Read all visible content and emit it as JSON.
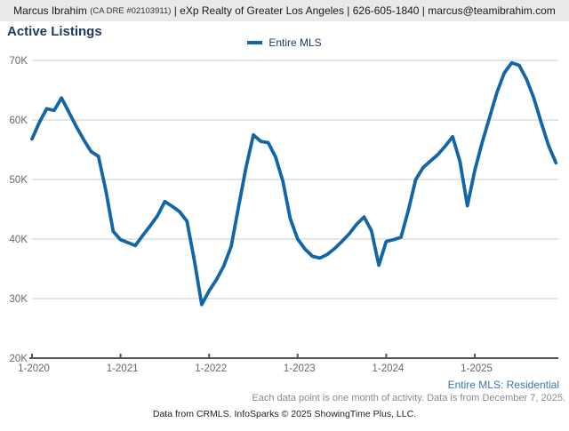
{
  "header": {
    "name": "Marcus Ibrahim ",
    "license": "(CA DRE #02103911)",
    "rest": " | eXp Realty of Greater Los Angeles | 626-605-1840 | marcus@teamibrahim.com"
  },
  "title": "Active Listings",
  "legend": {
    "label": "Entire MLS"
  },
  "footer": {
    "series_link": "Entire MLS: Residential",
    "note": "Each data point is one month of activity. Data is from December 7, 2025.",
    "attribution": "Data from CRMLS. InfoSparks © 2025 ShowingTime Plus, LLC."
  },
  "colors": {
    "line": "#1266a7",
    "title": "#1c3a64",
    "link": "#3b76ae",
    "grid": "#c9c9c9",
    "axis": "#555555",
    "tick_label": "#666666",
    "header_bg": "#e9e9e9"
  },
  "chart_data": {
    "type": "line",
    "title": "Active Listings",
    "legend_entries": [
      "Entire MLS"
    ],
    "legend_position": "top-center",
    "grid": "horizontal-only",
    "ylim": [
      20000,
      70000
    ],
    "y_tick_step": 10000,
    "y_tick_labels": [
      "20K",
      "30K",
      "40K",
      "50K",
      "60K",
      "70K"
    ],
    "x_tick_labels": [
      "1-2020",
      "1-2021",
      "1-2022",
      "1-2023",
      "1-2024",
      "1-2025"
    ],
    "months": [
      "2020-01",
      "2020-02",
      "2020-03",
      "2020-04",
      "2020-05",
      "2020-06",
      "2020-07",
      "2020-08",
      "2020-09",
      "2020-10",
      "2020-11",
      "2020-12",
      "2021-01",
      "2021-02",
      "2021-03",
      "2021-04",
      "2021-05",
      "2021-06",
      "2021-07",
      "2021-08",
      "2021-09",
      "2021-10",
      "2021-11",
      "2021-12",
      "2022-01",
      "2022-02",
      "2022-03",
      "2022-04",
      "2022-05",
      "2022-06",
      "2022-07",
      "2022-08",
      "2022-09",
      "2022-10",
      "2022-11",
      "2022-12",
      "2023-01",
      "2023-02",
      "2023-03",
      "2023-04",
      "2023-05",
      "2023-06",
      "2023-07",
      "2023-08",
      "2023-09",
      "2023-10",
      "2023-11",
      "2023-12",
      "2024-01",
      "2024-02",
      "2024-03",
      "2024-04",
      "2024-05",
      "2024-06",
      "2024-07",
      "2024-08",
      "2024-09",
      "2024-10",
      "2024-11",
      "2024-12",
      "2025-01",
      "2025-02",
      "2025-03",
      "2025-04",
      "2025-05",
      "2025-06",
      "2025-07",
      "2025-08",
      "2025-09",
      "2025-10",
      "2025-11",
      "2025-12"
    ],
    "series": [
      {
        "name": "Entire MLS",
        "values": [
          56800,
          59600,
          61900,
          61600,
          63700,
          61300,
          58900,
          56700,
          54700,
          53900,
          48200,
          41300,
          39900,
          39400,
          38900,
          40600,
          42200,
          43900,
          46300,
          45500,
          44600,
          43000,
          36400,
          29000,
          31300,
          33200,
          35500,
          38800,
          45500,
          52000,
          57500,
          56400,
          56200,
          53800,
          49700,
          43400,
          40000,
          38300,
          37100,
          36800,
          37400,
          38400,
          39600,
          40900,
          42500,
          43700,
          41400,
          35600,
          39600,
          39900,
          40300,
          44800,
          50000,
          52000,
          53100,
          54200,
          55600,
          57200,
          53000,
          45600,
          51500,
          56200,
          60400,
          64600,
          67900,
          69600,
          69200,
          66900,
          63700,
          59600,
          55700,
          52800
        ]
      }
    ]
  }
}
